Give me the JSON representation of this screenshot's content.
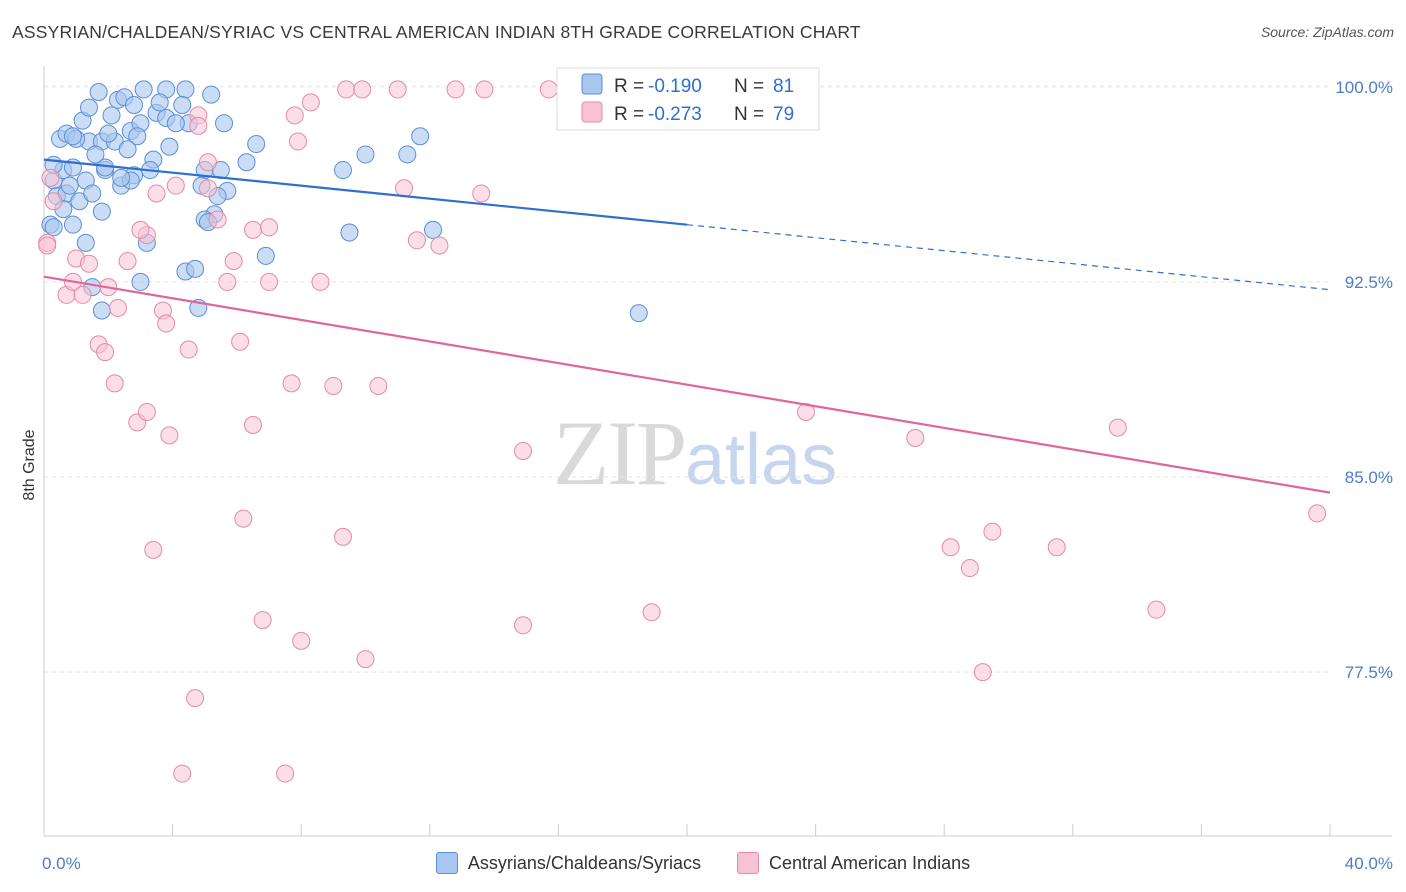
{
  "header": {
    "title": "ASSYRIAN/CHALDEAN/SYRIAC VS CENTRAL AMERICAN INDIAN 8TH GRADE CORRELATION CHART",
    "source": "Source: ZipAtlas.com"
  },
  "watermark": {
    "zip": "ZIP",
    "atlas": "atlas"
  },
  "legend_box": {
    "rows": [
      {
        "r_label": "R = ",
        "r_value": "-0.190",
        "n_label": "N = ",
        "n_value": "81"
      },
      {
        "r_label": "R = ",
        "r_value": "-0.273",
        "n_label": "N = ",
        "n_value": "79"
      }
    ]
  },
  "bottom_legend": {
    "series1": "Assyrians/Chaldeans/Syriacs",
    "series2": "Central American Indians"
  },
  "colors": {
    "blue_fill": "#a9c6ee",
    "blue_stroke": "#5b8fd6",
    "blue_line": "#2f6fcf",
    "pink_fill": "#f7c3d4",
    "pink_stroke": "#e48aa8",
    "pink_line": "#e0669a",
    "tick_text": "#4f7cc9",
    "grid": "#e3e3e3"
  },
  "chart_data": {
    "type": "scatter",
    "title": "ASSYRIAN/CHALDEAN/SYRIAC VS CENTRAL AMERICAN INDIAN 8TH GRADE CORRELATION CHART",
    "xlabel": "",
    "ylabel": "8th Grade",
    "xlim": [
      0,
      40
    ],
    "ylim": [
      71.2,
      100.8
    ],
    "x_tick_labels": [
      {
        "value": 0,
        "label": "0.0%"
      },
      {
        "value": 40,
        "label": "40.0%"
      }
    ],
    "y_ticks": [
      {
        "value": 100,
        "label": "100.0%"
      },
      {
        "value": 92.5,
        "label": "92.5%"
      },
      {
        "value": 85,
        "label": "85.0%"
      },
      {
        "value": 77.5,
        "label": "77.5%"
      }
    ],
    "grid": true,
    "legend_position": "top-center",
    "series": [
      {
        "name": "Assyrians/Chaldeans/Syriacs",
        "R": -0.19,
        "N": 81,
        "trend": {
          "x_solid_end": 20,
          "x_end": 40,
          "y_start": 97.2,
          "y_at_solid_end": 94.7,
          "y_end": 92.2
        },
        "points": [
          [
            1.7,
            99.8
          ],
          [
            2.3,
            99.5
          ],
          [
            2.5,
            99.6
          ],
          [
            3.1,
            99.9
          ],
          [
            3.8,
            99.9
          ],
          [
            4.4,
            99.9
          ],
          [
            5.2,
            99.7
          ],
          [
            2.8,
            99.3
          ],
          [
            3.5,
            99.0
          ],
          [
            4.3,
            99.3
          ],
          [
            5.6,
            98.6
          ],
          [
            0.5,
            98.0
          ],
          [
            0.7,
            98.2
          ],
          [
            1.2,
            98.7
          ],
          [
            1.4,
            97.9
          ],
          [
            1.8,
            97.9
          ],
          [
            2.2,
            97.9
          ],
          [
            2.7,
            98.3
          ],
          [
            3.0,
            98.6
          ],
          [
            3.8,
            98.8
          ],
          [
            4.5,
            98.6
          ],
          [
            0.3,
            96.4
          ],
          [
            0.6,
            96.8
          ],
          [
            0.9,
            96.9
          ],
          [
            1.3,
            96.4
          ],
          [
            1.9,
            96.8
          ],
          [
            2.4,
            96.2
          ],
          [
            2.8,
            96.6
          ],
          [
            3.4,
            97.2
          ],
          [
            3.9,
            97.7
          ],
          [
            0.4,
            95.8
          ],
          [
            0.7,
            95.9
          ],
          [
            1.1,
            95.6
          ],
          [
            1.5,
            95.9
          ],
          [
            1.8,
            95.2
          ],
          [
            0.2,
            94.7
          ],
          [
            0.3,
            94.6
          ],
          [
            0.9,
            94.7
          ],
          [
            1.3,
            94.0
          ],
          [
            3.2,
            94.0
          ],
          [
            5.3,
            95.1
          ],
          [
            5.7,
            96.0
          ],
          [
            6.3,
            97.1
          ],
          [
            6.6,
            97.8
          ],
          [
            0.3,
            97.0
          ],
          [
            1.0,
            98.0
          ],
          [
            2.0,
            98.2
          ],
          [
            5.0,
            96.8
          ],
          [
            5.5,
            96.8
          ],
          [
            6.9,
            93.5
          ],
          [
            9.3,
            96.8
          ],
          [
            9.5,
            94.4
          ],
          [
            10.0,
            97.4
          ],
          [
            11.3,
            97.4
          ],
          [
            11.7,
            98.1
          ],
          [
            12.1,
            94.5
          ],
          [
            3.0,
            92.5
          ],
          [
            4.4,
            92.9
          ],
          [
            4.7,
            93.0
          ],
          [
            4.8,
            91.5
          ],
          [
            1.5,
            92.3
          ],
          [
            1.8,
            91.4
          ],
          [
            5.0,
            94.9
          ],
          [
            4.9,
            96.2
          ],
          [
            2.7,
            96.4
          ],
          [
            0.8,
            96.2
          ],
          [
            0.6,
            95.3
          ],
          [
            2.9,
            98.1
          ],
          [
            1.4,
            99.2
          ],
          [
            3.6,
            99.4
          ],
          [
            1.9,
            96.9
          ],
          [
            2.6,
            97.6
          ],
          [
            5.4,
            95.8
          ],
          [
            5.1,
            94.8
          ],
          [
            4.1,
            98.6
          ],
          [
            2.1,
            98.9
          ],
          [
            0.9,
            98.1
          ],
          [
            1.6,
            97.4
          ],
          [
            2.4,
            96.5
          ],
          [
            3.3,
            96.8
          ],
          [
            18.5,
            91.3
          ]
        ]
      },
      {
        "name": "Central American Indians",
        "R": -0.273,
        "N": 79,
        "trend": {
          "x_start": 0,
          "x_end": 40,
          "y_start": 92.7,
          "y_end": 84.4
        },
        "points": [
          [
            9.4,
            99.9
          ],
          [
            9.9,
            99.9
          ],
          [
            11.0,
            99.9
          ],
          [
            12.8,
            99.9
          ],
          [
            13.7,
            99.9
          ],
          [
            15.7,
            99.9
          ],
          [
            16.9,
            99.9
          ],
          [
            20.0,
            99.9
          ],
          [
            23.0,
            99.9
          ],
          [
            8.3,
            99.4
          ],
          [
            7.8,
            98.9
          ],
          [
            4.8,
            98.9
          ],
          [
            4.8,
            98.5
          ],
          [
            7.9,
            97.9
          ],
          [
            4.1,
            96.2
          ],
          [
            5.1,
            97.1
          ],
          [
            5.1,
            96.1
          ],
          [
            11.2,
            96.1
          ],
          [
            13.6,
            95.9
          ],
          [
            3.2,
            94.3
          ],
          [
            3.5,
            95.9
          ],
          [
            6.5,
            94.5
          ],
          [
            7.0,
            94.6
          ],
          [
            5.9,
            93.3
          ],
          [
            5.7,
            92.5
          ],
          [
            0.1,
            94.0
          ],
          [
            0.3,
            95.6
          ],
          [
            1.0,
            93.4
          ],
          [
            1.4,
            93.2
          ],
          [
            2.6,
            93.3
          ],
          [
            3.7,
            91.4
          ],
          [
            3.8,
            90.9
          ],
          [
            4.5,
            89.9
          ],
          [
            6.1,
            90.2
          ],
          [
            1.7,
            90.1
          ],
          [
            1.9,
            89.8
          ],
          [
            2.2,
            88.6
          ],
          [
            0.7,
            92.0
          ],
          [
            0.9,
            92.5
          ],
          [
            1.2,
            92.0
          ],
          [
            2.9,
            87.1
          ],
          [
            3.2,
            87.5
          ],
          [
            3.9,
            86.6
          ],
          [
            6.5,
            87.0
          ],
          [
            7.7,
            88.6
          ],
          [
            9.0,
            88.5
          ],
          [
            10.4,
            88.5
          ],
          [
            11.6,
            94.1
          ],
          [
            12.3,
            93.9
          ],
          [
            7.0,
            92.5
          ],
          [
            8.6,
            92.5
          ],
          [
            14.9,
            86.0
          ],
          [
            23.7,
            87.5
          ],
          [
            27.1,
            86.5
          ],
          [
            33.4,
            86.9
          ],
          [
            6.2,
            83.4
          ],
          [
            3.4,
            82.2
          ],
          [
            9.3,
            82.7
          ],
          [
            28.2,
            82.3
          ],
          [
            28.8,
            81.5
          ],
          [
            29.5,
            82.9
          ],
          [
            31.5,
            82.3
          ],
          [
            39.6,
            83.6
          ],
          [
            6.8,
            79.5
          ],
          [
            8.0,
            78.7
          ],
          [
            10.0,
            78.0
          ],
          [
            14.9,
            79.3
          ],
          [
            18.9,
            79.8
          ],
          [
            34.6,
            79.9
          ],
          [
            29.2,
            77.5
          ],
          [
            4.7,
            76.5
          ],
          [
            4.3,
            73.6
          ],
          [
            7.5,
            73.6
          ],
          [
            0.2,
            96.5
          ],
          [
            0.1,
            93.9
          ],
          [
            2.3,
            91.5
          ],
          [
            3.0,
            94.5
          ],
          [
            5.4,
            94.9
          ],
          [
            2.0,
            92.3
          ]
        ]
      }
    ]
  }
}
